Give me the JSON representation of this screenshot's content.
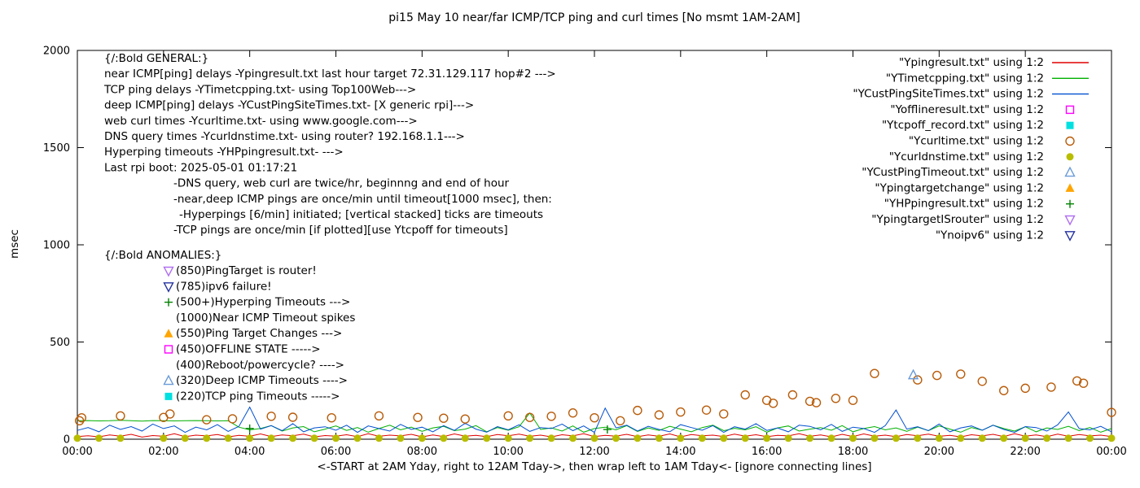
{
  "chart_data": {
    "type": "line",
    "title": "pi15 May 10  near/far ICMP/TCP ping and curl times [No msmt 1AM-2AM]",
    "xlabel": "<-START at 2AM Yday, right to 12AM Tday->, then wrap left to 1AM Tday<- [ignore connecting lines]",
    "ylabel": "msec",
    "ylim": [
      0,
      2000
    ],
    "y_ticks": [
      0,
      500,
      1000,
      1500,
      2000
    ],
    "x_range_hours": [
      0,
      24
    ],
    "x_tick_step_hours": 2,
    "x_ticks": [
      "00:00",
      "02:00",
      "04:00",
      "06:00",
      "08:00",
      "10:00",
      "12:00",
      "14:00",
      "16:00",
      "18:00",
      "20:00",
      "22:00",
      "00:00"
    ],
    "grid": false,
    "legend_position": "top-right",
    "line_series": [
      {
        "name": "Ypingresult.txt",
        "color": "#e00000",
        "x_step_hours": 0.25,
        "y": [
          14,
          18,
          12,
          22,
          16,
          25,
          11,
          19,
          15,
          28,
          13,
          21,
          17,
          24,
          12,
          20,
          15,
          27,
          14,
          22,
          18,
          26,
          12,
          19,
          16,
          23,
          13,
          28,
          15,
          21,
          17,
          25,
          12,
          22,
          14,
          27,
          16,
          20,
          13,
          24,
          18,
          26,
          15,
          21,
          12,
          23,
          17,
          28,
          14,
          20,
          16,
          25,
          13,
          22,
          15,
          27,
          12,
          24,
          18,
          21,
          14,
          26,
          16,
          23,
          13,
          20,
          17,
          28,
          15,
          22,
          12,
          25,
          14,
          27,
          16,
          21,
          13,
          24,
          18,
          26,
          15,
          20,
          12,
          23,
          17,
          25,
          14,
          28,
          16,
          22,
          13,
          26,
          15,
          24,
          17,
          21,
          14
        ]
      },
      {
        "name": "YTimetcpping.txt",
        "color": "#00b000",
        "x_step_hours": 0.25,
        "y": [
          95,
          96,
          94,
          95,
          97,
          95,
          93,
          96,
          95,
          94,
          95,
          96,
          95,
          94,
          95,
          62,
          48,
          55,
          70,
          42,
          58,
          65,
          38,
          52,
          68,
          45,
          60,
          36,
          55,
          72,
          48,
          62,
          40,
          58,
          66,
          44,
          52,
          70,
          38,
          60,
          46,
          64,
          135,
          50,
          58,
          42,
          68,
          36,
          55,
          62,
          48,
          70,
          40,
          58,
          45,
          66,
          52,
          38,
          60,
          72,
          44,
          56,
          48,
          64,
          36,
          58,
          68,
          42,
          52,
          60,
          46,
          70,
          38,
          55,
          65,
          48,
          58,
          40,
          62,
          44,
          68,
          52,
          36,
          60,
          46,
          72,
          55,
          42,
          64,
          38,
          58,
          50,
          66,
          44,
          60,
          36,
          55
        ]
      },
      {
        "name": "YCustPingSiteTimes.txt",
        "color": "#0050d0",
        "x_step_hours": 0.25,
        "y": [
          45,
          60,
          38,
          72,
          50,
          65,
          42,
          78,
          55,
          68,
          35,
          62,
          48,
          75,
          40,
          66,
          165,
          52,
          70,
          44,
          80,
          38,
          58,
          64,
          46,
          72,
          35,
          68,
          55,
          42,
          76,
          50,
          62,
          38,
          70,
          45,
          82,
          52,
          36,
          65,
          48,
          74,
          40,
          60,
          55,
          78,
          44,
          68,
          35,
          160,
          58,
          72,
          42,
          66,
          50,
          38,
          75,
          60,
          46,
          70,
          35,
          64,
          52,
          80,
          45,
          58,
          38,
          72,
          66,
          48,
          76,
          40,
          62,
          55,
          35,
          70,
          150,
          52,
          64,
          44,
          78,
          38,
          58,
          68,
          46,
          72,
          50,
          35,
          65,
          60,
          42,
          74,
          140,
          55,
          48,
          66,
          38
        ]
      }
    ],
    "scatter_series": [
      {
        "name": "Yofflineresult.txt",
        "marker": "square-open",
        "color": "#ff00ff",
        "points": []
      },
      {
        "name": "Ytcpoff_record.txt",
        "marker": "square-filled",
        "color": "#00e0e0",
        "points": []
      },
      {
        "name": "Ycurltime.txt",
        "marker": "circle-open",
        "color": "#b85c0a",
        "points": [
          [
            0.05,
            95
          ],
          [
            0.1,
            110
          ],
          [
            1.0,
            120
          ],
          [
            2.0,
            112
          ],
          [
            2.15,
            130
          ],
          [
            3.0,
            100
          ],
          [
            3.6,
            105
          ],
          [
            4.5,
            118
          ],
          [
            5.0,
            113
          ],
          [
            5.9,
            110
          ],
          [
            7.0,
            120
          ],
          [
            7.9,
            112
          ],
          [
            8.5,
            108
          ],
          [
            9.0,
            104
          ],
          [
            10.0,
            120
          ],
          [
            10.5,
            112
          ],
          [
            11.0,
            118
          ],
          [
            11.5,
            135
          ],
          [
            12.0,
            110
          ],
          [
            12.6,
            95
          ],
          [
            13.0,
            148
          ],
          [
            13.5,
            125
          ],
          [
            14.0,
            140
          ],
          [
            14.6,
            150
          ],
          [
            15.0,
            130
          ],
          [
            15.5,
            228
          ],
          [
            16.0,
            200
          ],
          [
            16.15,
            185
          ],
          [
            16.6,
            228
          ],
          [
            17.0,
            195
          ],
          [
            17.15,
            188
          ],
          [
            17.6,
            210
          ],
          [
            18.0,
            200
          ],
          [
            18.5,
            338
          ],
          [
            19.5,
            305
          ],
          [
            19.95,
            328
          ],
          [
            20.5,
            335
          ],
          [
            21.0,
            298
          ],
          [
            21.5,
            250
          ],
          [
            22.0,
            262
          ],
          [
            22.6,
            268
          ],
          [
            23.2,
            300
          ],
          [
            23.35,
            288
          ],
          [
            24.0,
            138
          ]
        ]
      },
      {
        "name": "Ycurldnstime.txt",
        "marker": "circle-filled",
        "color": "#b8bd00",
        "points": [
          [
            0,
            5
          ],
          [
            0.5,
            5
          ],
          [
            1,
            5
          ],
          [
            2,
            5
          ],
          [
            2.5,
            5
          ],
          [
            3,
            5
          ],
          [
            3.5,
            5
          ],
          [
            4,
            5
          ],
          [
            4.5,
            5
          ],
          [
            5,
            5
          ],
          [
            5.5,
            5
          ],
          [
            6,
            5
          ],
          [
            6.5,
            5
          ],
          [
            7,
            5
          ],
          [
            7.5,
            5
          ],
          [
            8,
            5
          ],
          [
            8.5,
            5
          ],
          [
            9,
            5
          ],
          [
            9.5,
            5
          ],
          [
            10,
            5
          ],
          [
            10.5,
            5
          ],
          [
            11,
            5
          ],
          [
            11.5,
            5
          ],
          [
            12,
            5
          ],
          [
            12.5,
            5
          ],
          [
            13,
            5
          ],
          [
            13.5,
            5
          ],
          [
            14,
            5
          ],
          [
            14.5,
            5
          ],
          [
            15,
            5
          ],
          [
            15.5,
            5
          ],
          [
            16,
            5
          ],
          [
            16.5,
            5
          ],
          [
            17,
            5
          ],
          [
            17.5,
            5
          ],
          [
            18,
            5
          ],
          [
            18.5,
            5
          ],
          [
            19,
            5
          ],
          [
            19.5,
            5
          ],
          [
            20,
            5
          ],
          [
            20.5,
            5
          ],
          [
            21,
            5
          ],
          [
            21.5,
            5
          ],
          [
            22,
            5
          ],
          [
            22.5,
            5
          ],
          [
            23,
            5
          ],
          [
            23.5,
            5
          ],
          [
            24,
            5
          ]
        ]
      },
      {
        "name": "YCustPingTimeout.txt",
        "marker": "triangle-up-open",
        "color": "#6a9bd8",
        "points": [
          [
            19.4,
            330
          ]
        ]
      },
      {
        "name": "Ypingtargetchange",
        "marker": "triangle-up-filled",
        "color": "#ffa500",
        "points": []
      },
      {
        "name": "YHPpingresult.txt",
        "marker": "plus",
        "color": "#008000",
        "points": [
          [
            4.0,
            55
          ],
          [
            12.3,
            50
          ]
        ]
      },
      {
        "name": "YpingtargetISrouter",
        "marker": "triangle-down-open",
        "color": "#b070f0",
        "points": []
      },
      {
        "name": "Ynoipv6",
        "marker": "triangle-down-open",
        "color": "#24319e",
        "points": []
      }
    ],
    "legend": [
      {
        "label": "\"Ypingresult.txt\" using 1:2",
        "sample": "line",
        "color": "#e00000"
      },
      {
        "label": "\"YTimetcpping.txt\" using 1:2",
        "sample": "line",
        "color": "#00b000"
      },
      {
        "label": "\"YCustPingSiteTimes.txt\" using 1:2",
        "sample": "line",
        "color": "#0050d0"
      },
      {
        "label": "\"Yofflineresult.txt\" using 1:2",
        "sample": "square-open",
        "color": "#ff00ff"
      },
      {
        "label": "\"Ytcpoff_record.txt\" using 1:2",
        "sample": "square-filled",
        "color": "#00e0e0"
      },
      {
        "label": "\"Ycurltime.txt\" using 1:2",
        "sample": "circle-open",
        "color": "#b85c0a"
      },
      {
        "label": "\"Ycurldnstime.txt\" using 1:2",
        "sample": "circle-filled",
        "color": "#b8bd00"
      },
      {
        "label": "\"YCustPingTimeout.txt\" using 1:2",
        "sample": "triangle-up-open",
        "color": "#6a9bd8"
      },
      {
        "label": "\"Ypingtargetchange\" using 1:2",
        "sample": "triangle-up-filled",
        "color": "#ffa500"
      },
      {
        "label": "\"YHPpingresult.txt\" using 1:2",
        "sample": "plus",
        "color": "#008000"
      },
      {
        "label": "\"YpingtargetISrouter\" using 1:2",
        "sample": "triangle-down-open",
        "color": "#b070f0"
      },
      {
        "label": "\"Ynoipv6\" using 1:2",
        "sample": "triangle-down-open",
        "color": "#24319e"
      }
    ],
    "annotations": {
      "general": [
        {
          "text": "{/:Bold GENERAL:}",
          "indent": 0
        },
        {
          "text": "near ICMP[ping] delays -Ypingresult.txt last hour target 72.31.129.117 hop#2 --->",
          "indent": 0
        },
        {
          "text": "TCP ping delays -YTimetcpping.txt- using Top100Web--->",
          "indent": 0
        },
        {
          "text": "deep ICMP[ping] delays -YCustPingSiteTimes.txt- [X generic rpi]--->",
          "indent": 0
        },
        {
          "text": "web curl times -Ycurltime.txt- using www.google.com--->",
          "indent": 0
        },
        {
          "text": "DNS query times -Ycurldnstime.txt- using router? 192.168.1.1--->",
          "indent": 0
        },
        {
          "text": "Hyperping timeouts -YHPpingresult.txt- --->",
          "indent": 0
        },
        {
          "text": "Last rpi boot: 2025-05-01 01:17:21",
          "indent": 0
        },
        {
          "text": "-DNS query, web curl are twice/hr, beginnng and end of hour",
          "indent": 85
        },
        {
          "text": "-near,deep ICMP pings are once/min until timeout[1000 msec], then:",
          "indent": 85
        },
        {
          "text": "-Hyperpings [6/min] initiated; [vertical stacked] ticks are timeouts",
          "indent": 92
        },
        {
          "text": "-TCP pings are once/min [if plotted][use Ytcpoff for timeouts]",
          "indent": 85
        }
      ],
      "anomalies_header": "{/:Bold ANOMALIES:}",
      "anomalies": [
        {
          "marker": "triangle-down-open",
          "color": "#b070f0",
          "text": "(850)PingTarget is router!"
        },
        {
          "marker": "triangle-down-open",
          "color": "#24319e",
          "text": "(785)ipv6 failure!"
        },
        {
          "marker": "plus",
          "color": "#008000",
          "text": "(500+)Hyperping Timeouts --->"
        },
        {
          "marker": null,
          "color": null,
          "text": "(1000)Near ICMP Timeout spikes"
        },
        {
          "marker": "triangle-up-filled",
          "color": "#ffa500",
          "text": "(550)Ping Target Changes --->"
        },
        {
          "marker": "square-open",
          "color": "#ff00ff",
          "text": "(450)OFFLINE STATE ----->"
        },
        {
          "marker": null,
          "color": null,
          "text": "(400)Reboot/powercycle? ---->"
        },
        {
          "marker": "triangle-up-open",
          "color": "#6a9bd8",
          "text": "(320)Deep ICMP Timeouts ---->"
        },
        {
          "marker": "square-filled",
          "color": "#00e0e0",
          "text": "(220)TCP ping Timeouts ----->"
        }
      ]
    }
  }
}
